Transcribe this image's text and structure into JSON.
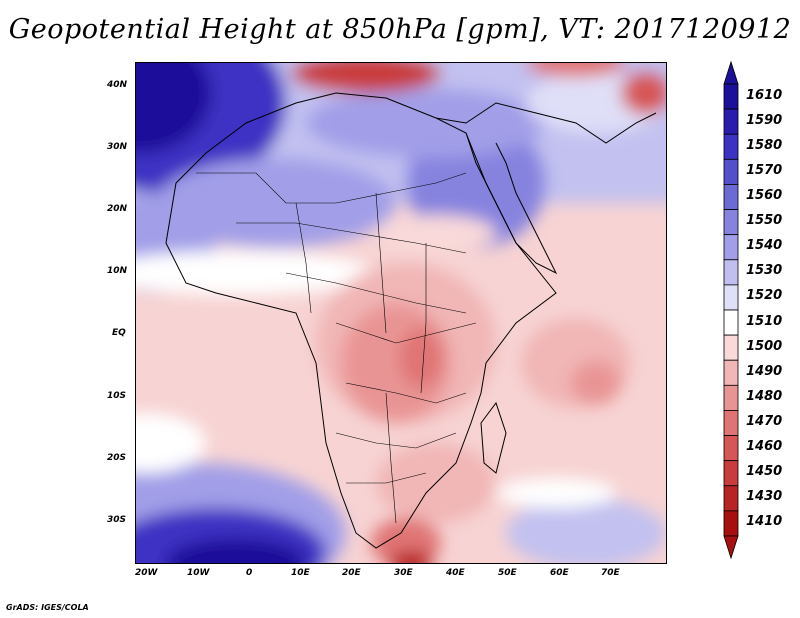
{
  "title": "Geopotential Height at 850hPa [gpm], VT: 2017120912",
  "credit": "GrADS: IGES/COLA",
  "axes": {
    "lat_ticks": [
      "40N",
      "30N",
      "20N",
      "10N",
      "EQ",
      "10S",
      "20S",
      "30S"
    ],
    "lon_ticks": [
      "20W",
      "10W",
      "0",
      "10E",
      "20E",
      "30E",
      "40E",
      "50E",
      "60E",
      "70E"
    ]
  },
  "colorbar": {
    "levels": [
      "1610",
      "1590",
      "1580",
      "1570",
      "1560",
      "1550",
      "1540",
      "1530",
      "1520",
      "1510",
      "1500",
      "1490",
      "1480",
      "1470",
      "1460",
      "1450",
      "1430",
      "1410"
    ],
    "colors": [
      "#1c0f9a",
      "#2a1cae",
      "#3c33c3",
      "#5450cc",
      "#6c6bd6",
      "#8683df",
      "#a29fe8",
      "#c0bff0",
      "#e0dff8",
      "#ffffff",
      "#f9d9d9",
      "#f1b6b6",
      "#e99494",
      "#e07474",
      "#d65656",
      "#c93c3c",
      "#b82424",
      "#a81010"
    ]
  }
}
